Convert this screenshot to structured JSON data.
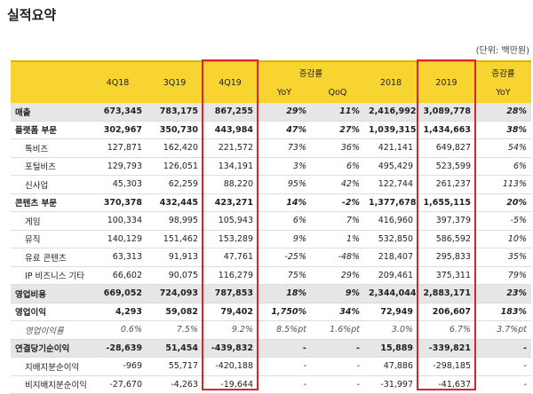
{
  "title": "실적요약",
  "unit": "(단위: 백만원)",
  "table": {
    "header": [
      "4Q18",
      "3Q19",
      "4Q19",
      "증감률",
      "2018",
      "2019",
      "증감률"
    ],
    "subheader": [
      "YoY",
      "QoQ",
      "YoY"
    ],
    "rows": [
      [
        "매출",
        "673,345",
        "783,175",
        "867,255",
        "29%",
        "11%",
        "2,416,992",
        "3,089,778",
        "28%"
      ],
      [
        "플랫폼 부문",
        "302,967",
        "350,730",
        "443,984",
        "47%",
        "27%",
        "1,039,315",
        "1,434,663",
        "38%"
      ],
      [
        "톡비즈",
        "127,871",
        "162,420",
        "221,572",
        "73%",
        "36%",
        "421,141",
        "649,827",
        "54%"
      ],
      [
        "포털비즈",
        "129,793",
        "126,051",
        "134,191",
        "3%",
        "6%",
        "495,429",
        "523,599",
        "6%"
      ],
      [
        "신사업",
        "45,303",
        "62,259",
        "88,220",
        "95%",
        "42%",
        "122,744",
        "261,237",
        "113%"
      ],
      [
        "콘텐츠 부문",
        "370,378",
        "432,445",
        "423,271",
        "14%",
        "-2%",
        "1,377,678",
        "1,655,115",
        "20%"
      ],
      [
        "게임",
        "100,334",
        "98,995",
        "105,943",
        "6%",
        "7%",
        "416,960",
        "397,379",
        "-5%"
      ],
      [
        "뮤직",
        "140,129",
        "151,462",
        "153,289",
        "9%",
        "1%",
        "532,850",
        "586,592",
        "10%"
      ],
      [
        "유료 콘텐츠",
        "63,313",
        "91,913",
        "47,761",
        "-25%",
        "-48%",
        "218,407",
        "295,833",
        "35%"
      ],
      [
        "IP 비즈니스 기타",
        "66,602",
        "90,075",
        "116,279",
        "75%",
        "29%",
        "209,461",
        "375,311",
        "79%"
      ],
      [
        "영업비용",
        "669,052",
        "724,093",
        "787,853",
        "18%",
        "9%",
        "2,344,044",
        "2,883,171",
        "23%"
      ],
      [
        "영업이익",
        "4,293",
        "59,082",
        "79,402",
        "1,750%",
        "34%",
        "72,949",
        "206,607",
        "183%"
      ],
      [
        "영업이익률",
        "0.6%",
        "7.5%",
        "9.2%",
        "8.5%pt",
        "1.6%pt",
        "3.0%",
        "6.7%",
        "3.7%pt"
      ],
      [
        "연결당기순이익",
        "-28,639",
        "51,454",
        "-439,832",
        "-",
        "-",
        "15,889",
        "-339,821",
        "-"
      ],
      [
        "지배지분순이익",
        "-969",
        "55,717",
        "-420,188",
        "-",
        "-",
        "47,886",
        "-298,185",
        "-"
      ],
      [
        "비지배지분순이익",
        "-27,670",
        "-4,263",
        "-19,644",
        "-",
        "-",
        "-31,997",
        "-41,637",
        "-"
      ]
    ]
  }
}
